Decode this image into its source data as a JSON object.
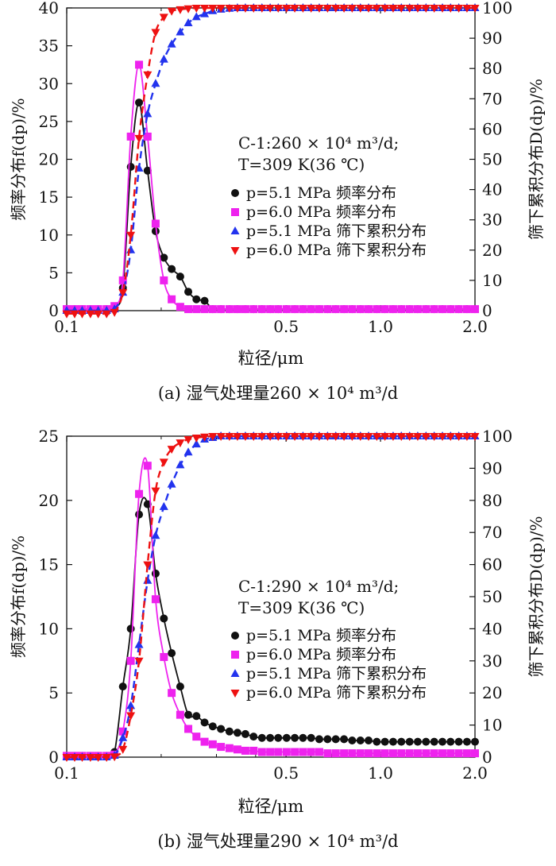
{
  "chart_data": [
    {
      "type": "line",
      "caption": "(a) 湿气处理量260 × 10⁴ m³/d",
      "annotation": [
        "C-1:260 × 10⁴ m³/d;",
        "T=309 K(36 ℃)"
      ],
      "xlabel": "粒径/μm",
      "ylabel_left": "频率分布f(dp)/%",
      "ylabel_right": "筛下累积分布D(dp)/%",
      "x_scale": "log",
      "xlim": [
        0.1,
        2.0
      ],
      "ylim_left": [
        0,
        40
      ],
      "ylim_right": [
        0,
        100
      ],
      "x_ticks": [
        "0.1",
        "0.5",
        "1.0",
        "2.0"
      ],
      "y_ticks_left": [
        "0",
        "5",
        "10",
        "15",
        "20",
        "25",
        "30",
        "35",
        "40"
      ],
      "y_ticks_right": [
        "0",
        "10",
        "20",
        "30",
        "40",
        "50",
        "60",
        "70",
        "80",
        "90",
        "100"
      ],
      "legend_position": "center-right",
      "series": [
        {
          "name": "p=5.1 MPa 频率分布",
          "axis": "left",
          "marker": "circle",
          "line": "solid",
          "color": "#111111",
          "x": [
            0.1,
            0.106,
            0.112,
            0.119,
            0.126,
            0.134,
            0.142,
            0.151,
            0.16,
            0.17,
            0.181,
            0.192,
            0.204,
            0.216,
            0.23,
            0.244,
            0.259,
            0.275,
            0.292,
            0.31,
            0.33,
            0.35,
            0.371,
            0.394,
            0.419,
            0.445,
            0.472,
            0.502,
            0.533,
            0.566,
            0.601,
            0.638,
            0.678,
            0.72,
            0.765,
            0.812,
            0.863,
            0.916,
            0.973,
            1.033,
            1.097,
            1.165,
            1.238,
            1.314,
            1.396,
            1.483,
            1.575,
            1.672,
            1.776,
            1.886,
            2.0
          ],
          "y": [
            0.2,
            0.2,
            0.2,
            0.2,
            0.2,
            0.2,
            0.5,
            3.0,
            19.0,
            27.5,
            18.5,
            10.5,
            7.0,
            5.5,
            4.5,
            2.5,
            1.5,
            1.3,
            0.2,
            0.2,
            0.2,
            0.2,
            0.2,
            0.2,
            0.2,
            0.2,
            0.2,
            0.2,
            0.2,
            0.2,
            0.2,
            0.2,
            0.2,
            0.2,
            0.2,
            0.2,
            0.2,
            0.2,
            0.2,
            0.2,
            0.2,
            0.2,
            0.2,
            0.2,
            0.2,
            0.2,
            0.2,
            0.2,
            0.2,
            0.2,
            0.2
          ]
        },
        {
          "name": "p=6.0 MPa 频率分布",
          "axis": "left",
          "marker": "square",
          "line": "solid",
          "color": "#ee22ee",
          "x": [
            0.1,
            0.106,
            0.112,
            0.119,
            0.126,
            0.134,
            0.142,
            0.151,
            0.16,
            0.17,
            0.181,
            0.192,
            0.204,
            0.216,
            0.23,
            0.244,
            0.259,
            0.275,
            0.292,
            0.31,
            0.33,
            0.35,
            0.371,
            0.394,
            0.419,
            0.445,
            0.472,
            0.502,
            0.533,
            0.566,
            0.601,
            0.638,
            0.678,
            0.72,
            0.765,
            0.812,
            0.863,
            0.916,
            0.973,
            1.033,
            1.097,
            1.165,
            1.238,
            1.314,
            1.396,
            1.483,
            1.575,
            1.672,
            1.776,
            1.886,
            2.0
          ],
          "y": [
            0.2,
            0.2,
            0.2,
            0.2,
            0.2,
            0.2,
            0.6,
            4.0,
            23.0,
            32.5,
            23.0,
            11.5,
            4.0,
            1.5,
            0.5,
            0.2,
            0.2,
            0.2,
            0.2,
            0.2,
            0.2,
            0.2,
            0.2,
            0.2,
            0.2,
            0.2,
            0.2,
            0.2,
            0.2,
            0.2,
            0.2,
            0.2,
            0.2,
            0.2,
            0.2,
            0.2,
            0.2,
            0.2,
            0.2,
            0.2,
            0.2,
            0.2,
            0.2,
            0.2,
            0.2,
            0.2,
            0.2,
            0.2,
            0.2,
            0.2,
            0.2
          ]
        },
        {
          "name": "p=5.1 MPa 筛下累积分布",
          "axis": "right",
          "marker": "triangle-up",
          "line": "dashed",
          "color": "#2233ee",
          "x": [
            0.1,
            0.106,
            0.112,
            0.119,
            0.126,
            0.134,
            0.142,
            0.151,
            0.16,
            0.17,
            0.181,
            0.192,
            0.204,
            0.216,
            0.23,
            0.244,
            0.259,
            0.275,
            0.292,
            0.31,
            0.33,
            0.35,
            0.371,
            0.394,
            0.419,
            0.445,
            0.472,
            0.502,
            0.533,
            0.566,
            0.601,
            0.638,
            0.678,
            0.72,
            0.765,
            0.812,
            0.863,
            0.916,
            0.973,
            1.033,
            1.097,
            1.165,
            1.238,
            1.314,
            1.396,
            1.483,
            1.575,
            1.672,
            1.776,
            1.886,
            2.0
          ],
          "y": [
            0,
            0,
            0,
            0,
            0,
            0,
            0.5,
            6,
            20,
            47,
            65,
            75,
            83,
            88,
            92,
            95,
            97,
            98,
            99,
            99.5,
            99.8,
            100,
            100,
            100,
            100,
            100,
            100,
            100,
            100,
            100,
            100,
            100,
            100,
            100,
            100,
            100,
            100,
            100,
            100,
            100,
            100,
            100,
            100,
            100,
            100,
            100,
            100,
            100,
            100,
            100,
            100
          ]
        },
        {
          "name": "p=6.0 MPa 筛下累积分布",
          "axis": "right",
          "marker": "triangle-down",
          "line": "dashed",
          "color": "#ee1111",
          "x": [
            0.1,
            0.106,
            0.112,
            0.119,
            0.126,
            0.134,
            0.142,
            0.151,
            0.16,
            0.17,
            0.181,
            0.192,
            0.204,
            0.216,
            0.23,
            0.244,
            0.259,
            0.275,
            0.292,
            0.31,
            0.33,
            0.35,
            0.371,
            0.394,
            0.419,
            0.445,
            0.472,
            0.502,
            0.533,
            0.566,
            0.601,
            0.638,
            0.678,
            0.72,
            0.765,
            0.812,
            0.863,
            0.916,
            0.973,
            1.033,
            1.097,
            1.165,
            1.238,
            1.314,
            1.396,
            1.483,
            1.575,
            1.672,
            1.776,
            1.886,
            2.0
          ],
          "y": [
            -1,
            -1,
            -1,
            -1,
            -1,
            -1,
            -0.5,
            6,
            25,
            57,
            78,
            92,
            97,
            99,
            99.5,
            99.8,
            100,
            100,
            100,
            100,
            100,
            100,
            100,
            100,
            100,
            100,
            100,
            100,
            100,
            100,
            100,
            100,
            100,
            100,
            100,
            100,
            100,
            100,
            100,
            100,
            100,
            100,
            100,
            100,
            100,
            100,
            100,
            100,
            100,
            100,
            100
          ]
        }
      ]
    },
    {
      "type": "line",
      "caption": "(b) 湿气处理量290 × 10⁴ m³/d",
      "annotation": [
        "C-1:290 × 10⁴ m³/d;",
        "T=309 K(36 ℃)"
      ],
      "xlabel": "粒径/μm",
      "ylabel_left": "频率分布f(dp)/%",
      "ylabel_right": "筛下累积分布D(dp)/%",
      "x_scale": "log",
      "xlim": [
        0.1,
        2.0
      ],
      "ylim_left": [
        0,
        25
      ],
      "ylim_right": [
        0,
        100
      ],
      "x_ticks": [
        "0.1",
        "0.5",
        "1.0",
        "2.0"
      ],
      "y_ticks_left": [
        "0",
        "5",
        "10",
        "15",
        "20",
        "25"
      ],
      "y_ticks_right": [
        "0",
        "10",
        "20",
        "30",
        "40",
        "50",
        "60",
        "70",
        "80",
        "90",
        "100"
      ],
      "legend_position": "center-right",
      "series": [
        {
          "name": "p=5.1 MPa 频率分布",
          "axis": "left",
          "marker": "circle",
          "line": "solid",
          "color": "#111111",
          "x": [
            0.1,
            0.106,
            0.112,
            0.119,
            0.126,
            0.134,
            0.142,
            0.151,
            0.16,
            0.17,
            0.181,
            0.192,
            0.204,
            0.216,
            0.23,
            0.244,
            0.259,
            0.275,
            0.292,
            0.31,
            0.33,
            0.35,
            0.371,
            0.394,
            0.419,
            0.445,
            0.472,
            0.502,
            0.533,
            0.566,
            0.601,
            0.638,
            0.678,
            0.72,
            0.765,
            0.812,
            0.863,
            0.916,
            0.973,
            1.033,
            1.097,
            1.165,
            1.238,
            1.314,
            1.396,
            1.483,
            1.575,
            1.672,
            1.776,
            1.886,
            2.0
          ],
          "y": [
            0.1,
            0.1,
            0.1,
            0.1,
            0.1,
            0.1,
            0.4,
            5.5,
            10.0,
            18.9,
            19.7,
            14.3,
            10.8,
            8.1,
            5.5,
            3.3,
            3.2,
            2.7,
            2.4,
            2.2,
            2.0,
            1.9,
            1.8,
            1.6,
            1.5,
            1.5,
            1.5,
            1.5,
            1.5,
            1.5,
            1.5,
            1.4,
            1.4,
            1.4,
            1.4,
            1.3,
            1.3,
            1.3,
            1.2,
            1.2,
            1.2,
            1.2,
            1.2,
            1.2,
            1.2,
            1.2,
            1.2,
            1.2,
            1.2,
            1.2,
            1.2
          ]
        },
        {
          "name": "p=6.0 MPa 频率分布",
          "axis": "left",
          "marker": "square",
          "line": "solid",
          "color": "#ee22ee",
          "x": [
            0.1,
            0.106,
            0.112,
            0.119,
            0.126,
            0.134,
            0.142,
            0.151,
            0.16,
            0.17,
            0.181,
            0.192,
            0.204,
            0.216,
            0.23,
            0.244,
            0.259,
            0.275,
            0.292,
            0.31,
            0.33,
            0.35,
            0.371,
            0.394,
            0.419,
            0.445,
            0.472,
            0.502,
            0.533,
            0.566,
            0.601,
            0.638,
            0.678,
            0.72,
            0.765,
            0.812,
            0.863,
            0.916,
            0.973,
            1.033,
            1.097,
            1.165,
            1.238,
            1.314,
            1.396,
            1.483,
            1.575,
            1.672,
            1.776,
            1.886,
            2.0
          ],
          "y": [
            0.1,
            0.1,
            0.1,
            0.1,
            0.1,
            0.1,
            0.2,
            2.0,
            7.5,
            20.5,
            22.7,
            12.3,
            7.8,
            5.0,
            3.3,
            2.2,
            1.6,
            1.2,
            1.0,
            0.8,
            0.7,
            0.6,
            0.5,
            0.5,
            0.4,
            0.4,
            0.4,
            0.4,
            0.4,
            0.4,
            0.4,
            0.4,
            0.3,
            0.3,
            0.3,
            0.3,
            0.3,
            0.3,
            0.3,
            0.3,
            0.3,
            0.3,
            0.3,
            0.3,
            0.3,
            0.3,
            0.3,
            0.3,
            0.3,
            0.3,
            0.3
          ]
        },
        {
          "name": "p=5.1 MPa 筛下累积分布",
          "axis": "right",
          "marker": "triangle-up",
          "line": "dashed",
          "color": "#2233ee",
          "x": [
            0.1,
            0.106,
            0.112,
            0.119,
            0.126,
            0.134,
            0.142,
            0.151,
            0.16,
            0.17,
            0.181,
            0.192,
            0.204,
            0.216,
            0.23,
            0.244,
            0.259,
            0.275,
            0.292,
            0.31,
            0.33,
            0.35,
            0.371,
            0.394,
            0.419,
            0.445,
            0.472,
            0.502,
            0.533,
            0.566,
            0.601,
            0.638,
            0.678,
            0.72,
            0.765,
            0.812,
            0.863,
            0.916,
            0.973,
            1.033,
            1.097,
            1.165,
            1.238,
            1.314,
            1.396,
            1.483,
            1.575,
            1.672,
            1.776,
            1.886,
            2.0
          ],
          "y": [
            0,
            0,
            0,
            0,
            0,
            0,
            0.5,
            6,
            16,
            35,
            55,
            69,
            78,
            85,
            91,
            95,
            97.5,
            99,
            99.5,
            100,
            100,
            100,
            100,
            100,
            100,
            100,
            100,
            100,
            100,
            100,
            100,
            100,
            100,
            100,
            100,
            100,
            100,
            100,
            100,
            100,
            100,
            100,
            100,
            100,
            100,
            100,
            100,
            100,
            100,
            100,
            100
          ]
        },
        {
          "name": "p=6.0 MPa 筛下累积分布",
          "axis": "right",
          "marker": "triangle-down",
          "line": "dashed",
          "color": "#ee1111",
          "x": [
            0.1,
            0.106,
            0.112,
            0.119,
            0.126,
            0.134,
            0.142,
            0.151,
            0.16,
            0.17,
            0.181,
            0.192,
            0.204,
            0.216,
            0.23,
            0.244,
            0.259,
            0.275,
            0.292,
            0.31,
            0.33,
            0.35,
            0.371,
            0.394,
            0.419,
            0.445,
            0.472,
            0.502,
            0.533,
            0.566,
            0.601,
            0.638,
            0.678,
            0.72,
            0.765,
            0.812,
            0.863,
            0.916,
            0.973,
            1.033,
            1.097,
            1.165,
            1.238,
            1.314,
            1.396,
            1.483,
            1.575,
            1.672,
            1.776,
            1.886,
            2.0
          ],
          "y": [
            0,
            0,
            0,
            0,
            0,
            0,
            0.2,
            2.5,
            13,
            30,
            60,
            83,
            92,
            96,
            98,
            99,
            99.5,
            99.8,
            100,
            100,
            100,
            100,
            100,
            100,
            100,
            100,
            100,
            100,
            100,
            100,
            100,
            100,
            100,
            100,
            100,
            100,
            100,
            100,
            100,
            100,
            100,
            100,
            100,
            100,
            100,
            100,
            100,
            100,
            100,
            100,
            100
          ]
        }
      ]
    }
  ]
}
